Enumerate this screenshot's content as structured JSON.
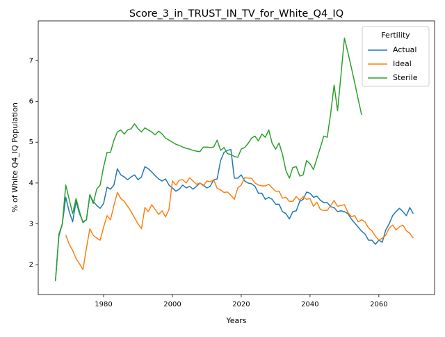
{
  "chart_data": {
    "type": "line",
    "title": "Score_3_in_TRUST_IN_TV_for_White_Q4_IQ",
    "x_label": "Years",
    "y_label": "% of White Q4_IQ Population",
    "legend_title": "Fertility",
    "legend_corner": "upper right",
    "grid": false,
    "xlim": [
      1961,
      2076.2
    ],
    "ylim": [
      1.27,
      7.97
    ],
    "xticks": [
      1980,
      2000,
      2020,
      2040,
      2060
    ],
    "yticks": [
      2,
      3,
      4,
      5,
      6,
      7
    ],
    "x": [
      1966,
      1967,
      1968,
      1969,
      1970,
      1971,
      1972,
      1973,
      1974,
      1975,
      1976,
      1977,
      1978,
      1979,
      1980,
      1981,
      1982,
      1983,
      1984,
      1985,
      1986,
      1987,
      1988,
      1989,
      1990,
      1991,
      1992,
      1993,
      1994,
      1995,
      1996,
      1997,
      1998,
      1999,
      2000,
      2001,
      2002,
      2003,
      2004,
      2005,
      2006,
      2007,
      2008,
      2009,
      2010,
      2011,
      2012,
      2013,
      2014,
      2015,
      2016,
      2017,
      2018,
      2019,
      2020,
      2021,
      2022,
      2023,
      2024,
      2025,
      2026,
      2027,
      2028,
      2029,
      2030,
      2031,
      2032,
      2033,
      2034,
      2035,
      2036,
      2037,
      2038,
      2039,
      2040,
      2041,
      2042,
      2043,
      2044,
      2045,
      2046,
      2047,
      2048,
      2049,
      2050,
      2051,
      2052,
      2053,
      2054,
      2055,
      2056,
      2057,
      2058,
      2059,
      2060,
      2061,
      2062,
      2063,
      2064,
      2065,
      2066,
      2067,
      2068,
      2069,
      2070
    ],
    "series": [
      {
        "name": "Actual",
        "color": "#1f77b4",
        "values": [
          1.6,
          2.7,
          3.0,
          3.65,
          3.3,
          3.05,
          3.55,
          3.25,
          3.05,
          3.1,
          3.7,
          3.55,
          3.45,
          3.38,
          3.5,
          3.9,
          3.85,
          3.95,
          4.35,
          4.2,
          4.15,
          4.08,
          4.15,
          4.2,
          4.08,
          4.15,
          4.4,
          4.35,
          4.27,
          4.18,
          4.1,
          4.05,
          4.1,
          3.95,
          3.88,
          3.8,
          3.85,
          3.95,
          3.88,
          3.92,
          3.85,
          3.92,
          4.0,
          3.95,
          3.88,
          3.92,
          4.08,
          4.1,
          4.55,
          4.75,
          4.8,
          4.82,
          4.12,
          4.12,
          4.2,
          4.05,
          4.0,
          3.98,
          3.92,
          3.75,
          3.75,
          3.6,
          3.65,
          3.6,
          3.48,
          3.48,
          3.3,
          3.25,
          3.12,
          3.3,
          3.32,
          3.55,
          3.6,
          3.78,
          3.75,
          3.65,
          3.68,
          3.58,
          3.52,
          3.52,
          3.42,
          3.4,
          3.3,
          3.32,
          3.3,
          3.25,
          3.12,
          3.02,
          2.92,
          2.82,
          2.75,
          2.6,
          2.6,
          2.5,
          2.6,
          2.55,
          2.85,
          3.0,
          3.2,
          3.3,
          3.38,
          3.3,
          3.2,
          3.4,
          3.25
        ]
      },
      {
        "name": "Ideal",
        "color": "#ff7f0e",
        "values": [
          null,
          null,
          null,
          2.73,
          2.5,
          2.35,
          2.15,
          2.02,
          1.88,
          2.4,
          2.88,
          2.72,
          2.65,
          2.6,
          2.92,
          3.2,
          3.1,
          3.45,
          3.77,
          3.62,
          3.55,
          3.43,
          3.3,
          3.15,
          3.0,
          2.88,
          3.4,
          3.3,
          3.47,
          3.35,
          3.23,
          3.32,
          3.17,
          3.35,
          4.05,
          3.95,
          4.07,
          4.08,
          4.0,
          4.13,
          4.05,
          3.97,
          4.0,
          3.93,
          4.05,
          4.03,
          4.08,
          3.87,
          3.83,
          3.77,
          3.78,
          3.7,
          3.6,
          3.88,
          3.95,
          4.13,
          4.12,
          4.12,
          4.0,
          3.95,
          3.93,
          3.93,
          3.97,
          3.88,
          3.8,
          3.8,
          3.63,
          3.65,
          3.55,
          3.55,
          3.67,
          3.58,
          3.67,
          3.6,
          3.62,
          3.43,
          3.53,
          3.35,
          3.33,
          3.33,
          3.45,
          3.57,
          3.43,
          3.45,
          3.47,
          3.28,
          3.18,
          3.2,
          3.05,
          3.1,
          3.05,
          2.9,
          2.83,
          2.7,
          2.6,
          2.65,
          2.72,
          2.9,
          2.97,
          2.85,
          2.93,
          2.97,
          2.83,
          2.77,
          2.65
        ]
      },
      {
        "name": "Sterile",
        "color": "#2ca02c",
        "values": [
          1.6,
          2.75,
          3.0,
          3.95,
          3.6,
          3.25,
          3.62,
          3.3,
          3.03,
          3.1,
          3.72,
          3.5,
          3.85,
          3.95,
          4.4,
          4.75,
          4.75,
          5.05,
          5.25,
          5.3,
          5.2,
          5.3,
          5.33,
          5.45,
          5.33,
          5.25,
          5.35,
          5.3,
          5.25,
          5.18,
          5.27,
          5.2,
          5.1,
          5.05,
          5.0,
          4.95,
          4.92,
          4.88,
          4.85,
          4.83,
          4.8,
          4.78,
          4.77,
          4.88,
          4.88,
          4.87,
          4.88,
          5.05,
          4.8,
          4.87,
          4.72,
          4.7,
          4.65,
          4.63,
          4.83,
          4.87,
          4.97,
          5.1,
          5.15,
          5.03,
          5.2,
          5.12,
          5.3,
          4.97,
          4.83,
          4.98,
          4.7,
          4.3,
          4.12,
          4.38,
          4.4,
          4.17,
          4.2,
          4.55,
          4.47,
          4.33,
          4.6,
          4.87,
          5.15,
          5.12,
          5.7,
          6.4,
          5.77,
          6.65,
          7.55,
          7.2,
          6.83,
          6.45,
          6.05,
          5.67,
          null,
          null,
          null,
          null,
          null,
          null,
          null,
          null,
          null,
          null,
          null,
          null,
          null,
          null,
          null
        ]
      }
    ]
  }
}
